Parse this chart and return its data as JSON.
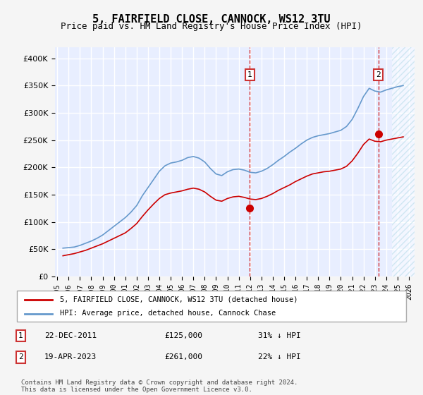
{
  "title": "5, FAIRFIELD CLOSE, CANNOCK, WS12 3TU",
  "subtitle": "Price paid vs. HM Land Registry's House Price Index (HPI)",
  "legend_line1": "5, FAIRFIELD CLOSE, CANNOCK, WS12 3TU (detached house)",
  "legend_line2": "HPI: Average price, detached house, Cannock Chase",
  "footer": "Contains HM Land Registry data © Crown copyright and database right 2024.\nThis data is licensed under the Open Government Licence v3.0.",
  "transactions": [
    {
      "label": "1",
      "date": "22-DEC-2011",
      "price": 125000,
      "pct": "31% ↓ HPI",
      "x_year": 2011.97
    },
    {
      "label": "2",
      "date": "19-APR-2023",
      "price": 261000,
      "pct": "22% ↓ HPI",
      "x_year": 2023.3
    }
  ],
  "ylim": [
    0,
    400000
  ],
  "xlim_start": 1995,
  "xlim_end": 2026.5,
  "background_color": "#f0f4ff",
  "plot_bg": "#e8eeff",
  "red_color": "#cc0000",
  "blue_color": "#6699cc",
  "grid_color": "#ffffff",
  "hpi_data": {
    "years": [
      1995.5,
      1996,
      1996.5,
      1997,
      1997.5,
      1998,
      1998.5,
      1999,
      1999.5,
      2000,
      2000.5,
      2001,
      2001.5,
      2002,
      2002.5,
      2003,
      2003.5,
      2004,
      2004.5,
      2005,
      2005.5,
      2006,
      2006.5,
      2007,
      2007.5,
      2008,
      2008.5,
      2009,
      2009.5,
      2010,
      2010.5,
      2011,
      2011.5,
      2012,
      2012.5,
      2013,
      2013.5,
      2014,
      2014.5,
      2015,
      2015.5,
      2016,
      2016.5,
      2017,
      2017.5,
      2018,
      2018.5,
      2019,
      2019.5,
      2020,
      2020.5,
      2021,
      2021.5,
      2022,
      2022.5,
      2023,
      2023.5,
      2024,
      2024.5,
      2025,
      2025.5
    ],
    "values": [
      52000,
      53000,
      54000,
      57000,
      61000,
      65000,
      70000,
      76000,
      84000,
      92000,
      100000,
      108000,
      118000,
      130000,
      148000,
      163000,
      178000,
      193000,
      203000,
      208000,
      210000,
      213000,
      218000,
      220000,
      217000,
      210000,
      198000,
      188000,
      185000,
      192000,
      196000,
      197000,
      195000,
      191000,
      190000,
      193000,
      198000,
      205000,
      213000,
      220000,
      228000,
      235000,
      243000,
      250000,
      255000,
      258000,
      260000,
      262000,
      265000,
      268000,
      275000,
      288000,
      308000,
      330000,
      345000,
      340000,
      338000,
      342000,
      345000,
      348000,
      350000
    ]
  },
  "property_data": {
    "years": [
      1995.5,
      1996,
      1996.5,
      1997,
      1997.5,
      1998,
      1998.5,
      1999,
      1999.5,
      2000,
      2000.5,
      2001,
      2001.5,
      2002,
      2002.5,
      2003,
      2003.5,
      2004,
      2004.5,
      2005,
      2005.5,
      2006,
      2006.5,
      2007,
      2007.5,
      2008,
      2008.5,
      2009,
      2009.5,
      2010,
      2010.5,
      2011,
      2011.5,
      2012,
      2012.5,
      2013,
      2013.5,
      2014,
      2014.5,
      2015,
      2015.5,
      2016,
      2016.5,
      2017,
      2017.5,
      2018,
      2018.5,
      2019,
      2019.5,
      2020,
      2020.5,
      2021,
      2021.5,
      2022,
      2022.5,
      2023,
      2023.5,
      2024,
      2024.5,
      2025,
      2025.5
    ],
    "values": [
      38000,
      40000,
      42000,
      45000,
      48000,
      52000,
      56000,
      60000,
      65000,
      70000,
      75000,
      80000,
      88000,
      97000,
      110000,
      122000,
      133000,
      143000,
      150000,
      153000,
      155000,
      157000,
      160000,
      162000,
      160000,
      155000,
      147000,
      140000,
      138000,
      143000,
      146000,
      147000,
      145000,
      142000,
      141000,
      143000,
      147000,
      152000,
      158000,
      163000,
      168000,
      174000,
      179000,
      184000,
      188000,
      190000,
      192000,
      193000,
      195000,
      197000,
      202000,
      212000,
      226000,
      242000,
      252000,
      248000,
      247000,
      250000,
      252000,
      254000,
      256000
    ]
  }
}
